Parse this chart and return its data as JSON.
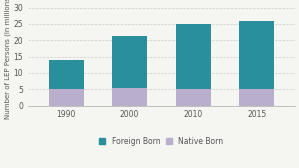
{
  "categories": [
    "1990",
    "2000",
    "2010",
    "2015"
  ],
  "native_born": [
    5.0,
    5.5,
    5.2,
    5.2
  ],
  "foreign_born": [
    9.0,
    15.7,
    19.8,
    20.8
  ],
  "foreign_born_color": "#2a8f9c",
  "native_born_color": "#b9aecb",
  "ylabel": "Number of LEP Persons (in millions)",
  "ylim": [
    0,
    30
  ],
  "yticks": [
    0,
    5,
    10,
    15,
    20,
    25,
    30
  ],
  "legend_labels": [
    "Foreign Born",
    "Native Born"
  ],
  "background_color": "#f5f5f2",
  "bar_width": 0.55,
  "axis_fontsize": 5.0,
  "tick_fontsize": 5.5
}
